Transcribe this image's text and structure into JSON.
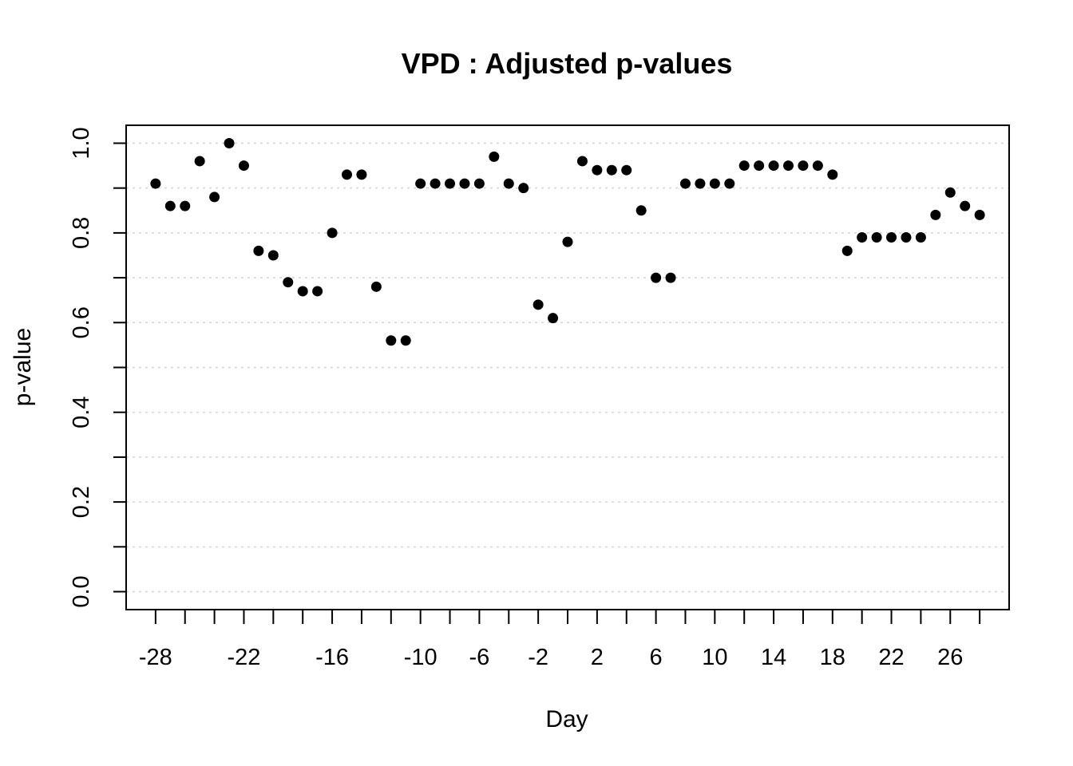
{
  "chart_data": {
    "type": "scatter",
    "title": "VPD : Adjusted p-values",
    "xlabel": "Day",
    "ylabel": "p-value",
    "xlim": [
      -30,
      30
    ],
    "ylim": [
      -0.04,
      1.04
    ],
    "x_ticks_minor": [
      -28,
      -26,
      -24,
      -22,
      -20,
      -18,
      -16,
      -14,
      -12,
      -10,
      -8,
      -6,
      -4,
      -2,
      0,
      2,
      4,
      6,
      8,
      10,
      12,
      14,
      16,
      18,
      20,
      22,
      24,
      26,
      28
    ],
    "x_tick_labels": [
      "-28",
      "-22",
      "-16",
      "-10",
      "-6",
      "-2",
      "2",
      "6",
      "10",
      "14",
      "18",
      "22",
      "26"
    ],
    "x_tick_label_values": [
      -28,
      -22,
      -16,
      -10,
      -6,
      -2,
      2,
      6,
      10,
      14,
      18,
      22,
      26
    ],
    "y_ticks": [
      0.0,
      0.2,
      0.4,
      0.6,
      0.8,
      1.0
    ],
    "y_tick_labels": [
      "0.0",
      "0.2",
      "0.4",
      "0.6",
      "0.8",
      "1.0"
    ],
    "y_grid": [
      0.0,
      0.1,
      0.2,
      0.3,
      0.4,
      0.5,
      0.6,
      0.7,
      0.8,
      0.9,
      1.0
    ],
    "grid": true,
    "color": "#000000",
    "x": [
      -28,
      -27,
      -26,
      -25,
      -24,
      -23,
      -22,
      -21,
      -20,
      -19,
      -18,
      -17,
      -16,
      -15,
      -14,
      -13,
      -12,
      -11,
      -10,
      -9,
      -8,
      -7,
      -6,
      -5,
      -4,
      -3,
      -2,
      -1,
      0,
      1,
      2,
      3,
      4,
      5,
      6,
      7,
      8,
      9,
      10,
      11,
      12,
      13,
      14,
      15,
      16,
      17,
      18,
      19,
      20,
      21,
      22,
      23,
      24,
      25,
      26,
      27,
      28
    ],
    "y": [
      0.91,
      0.86,
      0.86,
      0.96,
      0.88,
      1.0,
      0.95,
      0.76,
      0.75,
      0.69,
      0.67,
      0.67,
      0.8,
      0.93,
      0.93,
      0.68,
      0.56,
      0.56,
      0.91,
      0.91,
      0.91,
      0.91,
      0.91,
      0.97,
      0.91,
      0.9,
      0.64,
      0.61,
      0.78,
      0.96,
      0.94,
      0.94,
      0.94,
      0.85,
      0.7,
      0.7,
      0.91,
      0.91,
      0.91,
      0.91,
      0.95,
      0.95,
      0.95,
      0.95,
      0.95,
      0.95,
      0.93,
      0.76,
      0.79,
      0.79,
      0.79,
      0.79,
      0.79,
      0.84,
      0.89,
      0.86,
      0.84
    ]
  }
}
